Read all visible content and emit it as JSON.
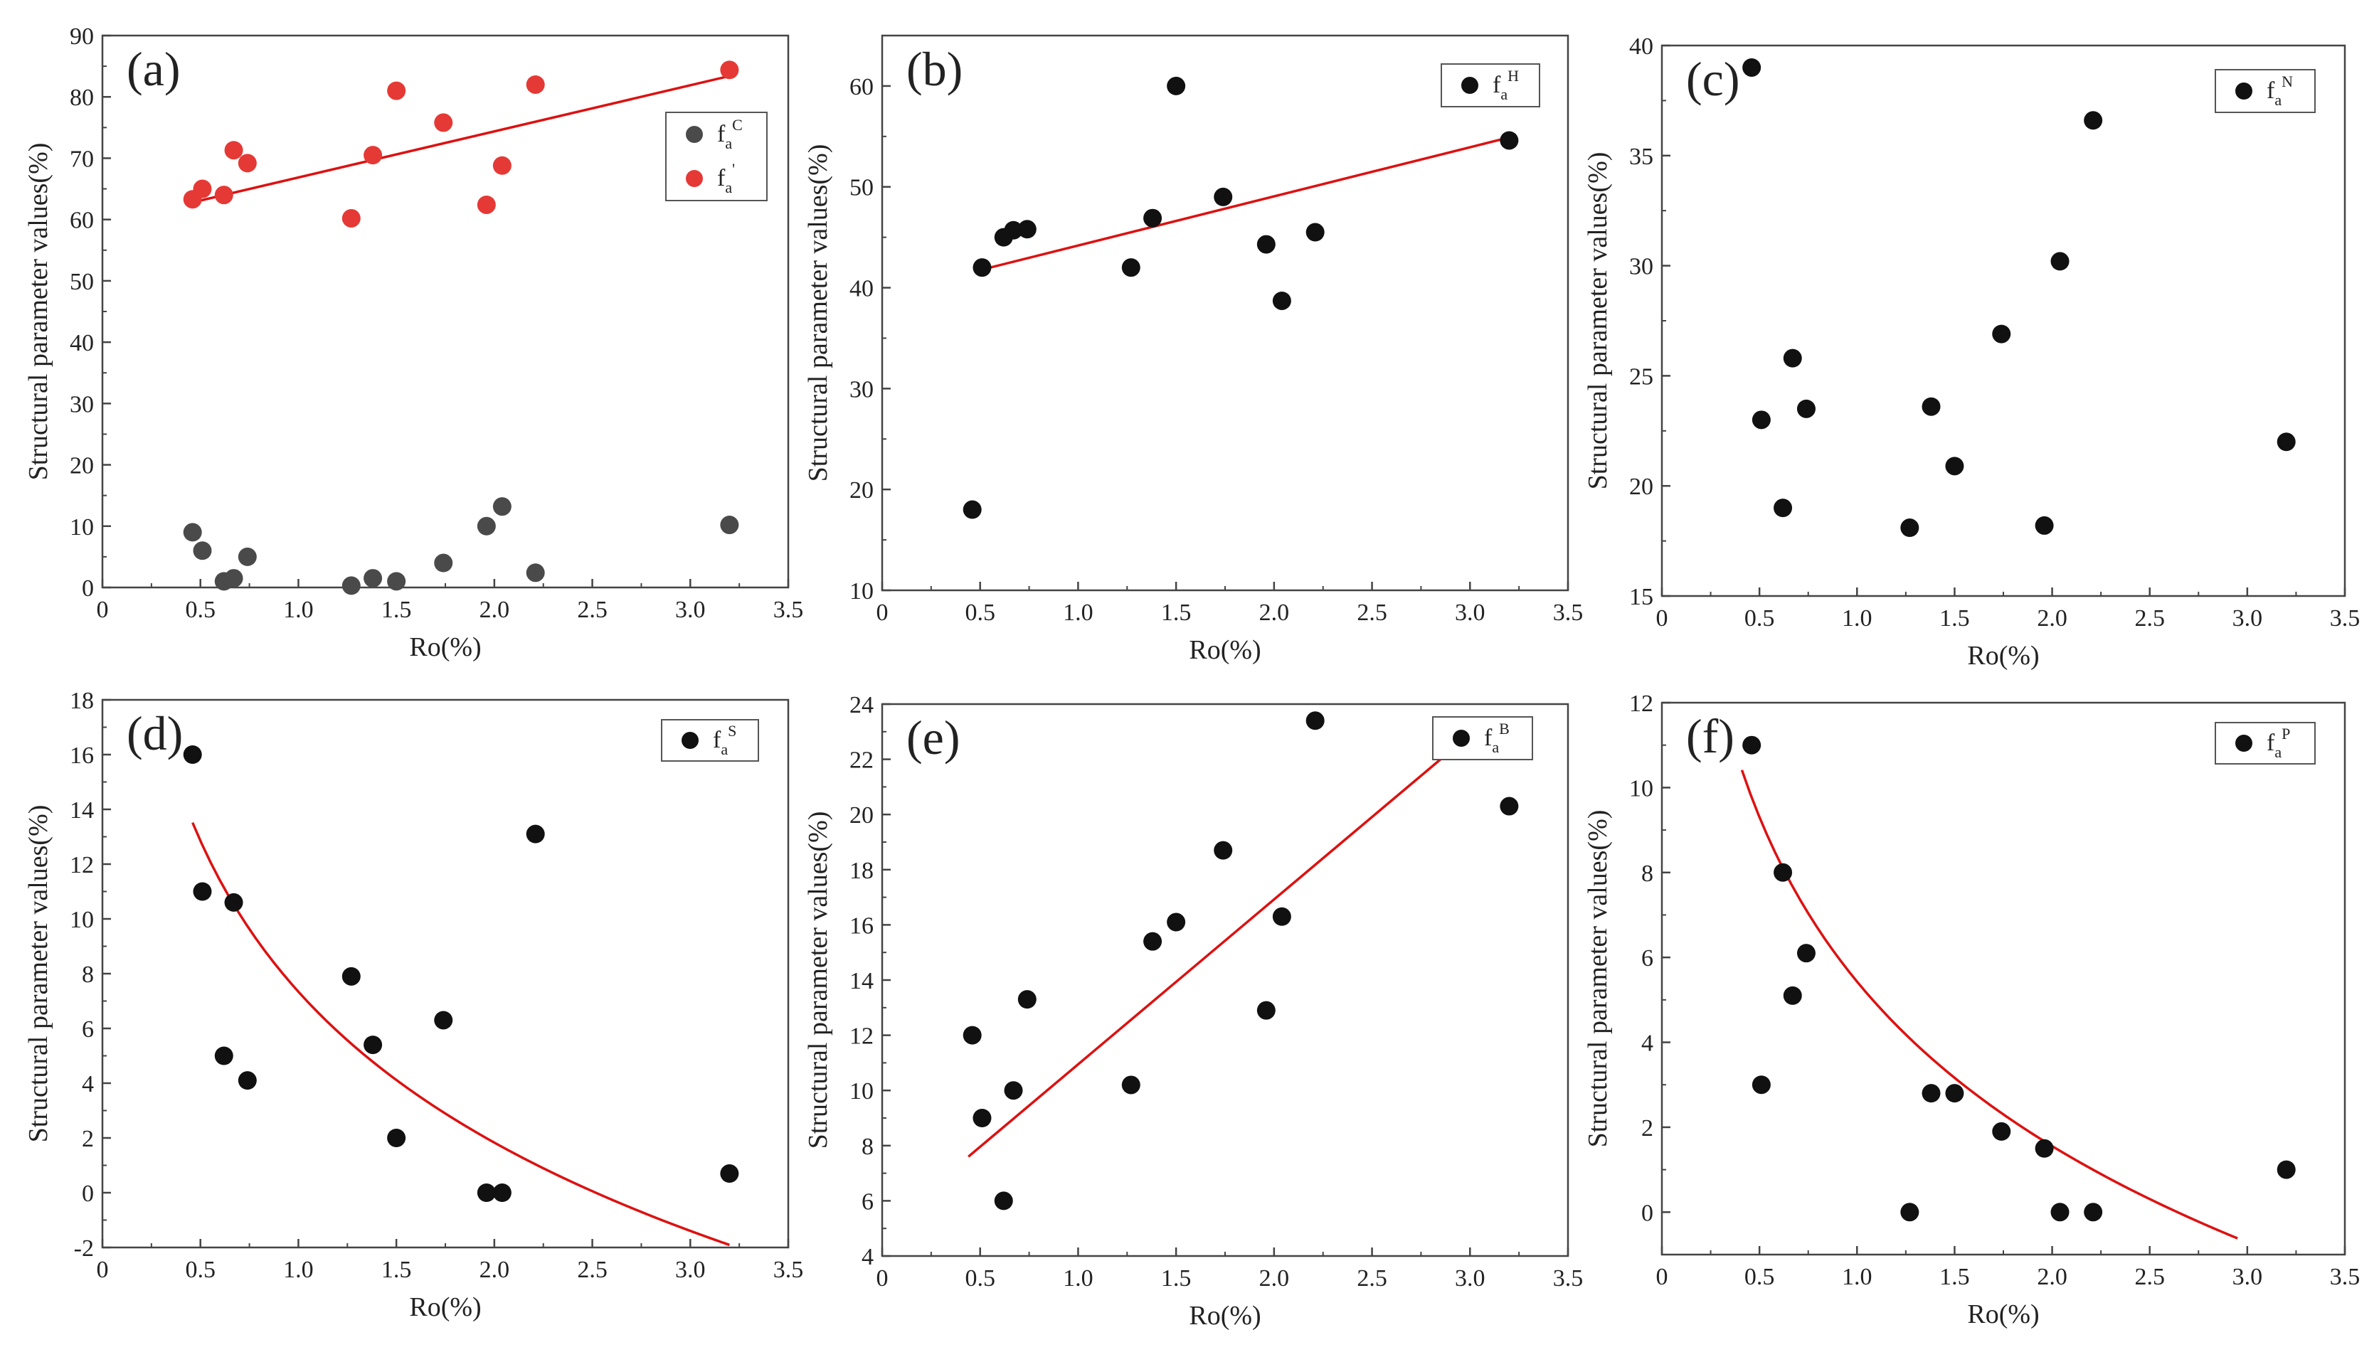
{
  "figure": {
    "colors": {
      "black": "#111111",
      "gray": "#4a4a4a",
      "red": "#e53935",
      "fit": "#dd1111",
      "axis": "#444444"
    }
  },
  "chart_data": [
    {
      "type": "scatter",
      "letter": "(a)",
      "xlabel": "Ro(%)",
      "ylabel": "Structural parameter values(%)",
      "xlim": [
        0,
        3.5
      ],
      "ylim": [
        0,
        90
      ],
      "xticks": [
        "0",
        "0.5",
        "1.0",
        "1.5",
        "2.0",
        "2.5",
        "3.0",
        "3.5"
      ],
      "yticks": [
        "0",
        "10",
        "20",
        "30",
        "40",
        "50",
        "60",
        "70",
        "80",
        "90"
      ],
      "ytick_values": [
        0,
        10,
        20,
        30,
        40,
        50,
        60,
        70,
        80,
        90
      ],
      "legend_position": "top-right",
      "series": [
        {
          "name": "fa C",
          "legend_base": "f",
          "legend_sub": "a",
          "legend_sup": "C",
          "color": "#4a4a4a",
          "x": [
            0.46,
            0.51,
            0.62,
            0.67,
            0.74,
            1.27,
            1.38,
            1.5,
            1.74,
            1.96,
            2.04,
            2.21,
            3.2
          ],
          "y": [
            9.0,
            6.0,
            1.0,
            1.5,
            5.0,
            0.3,
            1.5,
            1.0,
            4.0,
            10.0,
            13.2,
            2.4,
            10.2
          ]
        },
        {
          "name": "fa '",
          "legend_base": "f",
          "legend_sub": "a",
          "legend_sup": "'",
          "color": "#e53935",
          "x": [
            0.46,
            0.51,
            0.62,
            0.67,
            0.74,
            1.27,
            1.38,
            1.5,
            1.74,
            1.96,
            2.04,
            2.21,
            3.2
          ],
          "y": [
            63.3,
            65.0,
            64.0,
            71.3,
            69.2,
            60.2,
            70.5,
            81.0,
            75.8,
            62.4,
            68.8,
            82.0,
            84.4
          ]
        }
      ],
      "fit": {
        "kind": "linear",
        "series": 1,
        "x_range": [
          0.46,
          3.2
        ],
        "y_range": [
          62.8,
          83.4
        ]
      }
    },
    {
      "type": "scatter",
      "letter": "(b)",
      "xlabel": "Ro(%)",
      "ylabel": "Structural parameter values(%)",
      "xlim": [
        0,
        3.5
      ],
      "ylim": [
        10,
        65
      ],
      "xticks": [
        "0",
        "0.5",
        "1.0",
        "1.5",
        "2.0",
        "2.5",
        "3.0",
        "3.5"
      ],
      "yticks": [
        "10",
        "20",
        "30",
        "40",
        "50",
        "60"
      ],
      "ytick_values": [
        10,
        20,
        30,
        40,
        50,
        60
      ],
      "legend_position": "top-right",
      "series": [
        {
          "name": "fa H",
          "legend_base": "f",
          "legend_sub": "a",
          "legend_sup": "H",
          "color": "#111111",
          "x": [
            0.46,
            0.51,
            0.62,
            0.67,
            0.74,
            1.27,
            1.38,
            1.5,
            1.74,
            1.96,
            2.04,
            2.21,
            3.2
          ],
          "y": [
            18.0,
            42.0,
            45.0,
            45.7,
            45.8,
            42.0,
            46.9,
            60.0,
            49.0,
            44.3,
            38.7,
            45.5,
            54.6
          ]
        }
      ],
      "fit": {
        "kind": "linear",
        "series": 0,
        "x_range": [
          0.51,
          3.2
        ],
        "y_range": [
          41.8,
          54.9
        ]
      }
    },
    {
      "type": "scatter",
      "letter": "(c)",
      "xlabel": "Ro(%)",
      "ylabel": "Structural parameter values(%)",
      "xlim": [
        0,
        3.5
      ],
      "ylim": [
        15,
        40
      ],
      "xticks": [
        "0",
        "0.5",
        "1.0",
        "1.5",
        "2.0",
        "2.5",
        "3.0",
        "3.5"
      ],
      "yticks": [
        "15",
        "20",
        "25",
        "30",
        "35",
        "40"
      ],
      "ytick_values": [
        15,
        20,
        25,
        30,
        35,
        40
      ],
      "legend_position": "top-right",
      "series": [
        {
          "name": "fa N",
          "legend_base": "f",
          "legend_sub": "a",
          "legend_sup": "N",
          "color": "#111111",
          "x": [
            0.46,
            0.51,
            0.62,
            0.67,
            0.74,
            1.27,
            1.38,
            1.5,
            1.74,
            1.96,
            2.04,
            2.21,
            3.2
          ],
          "y": [
            39.0,
            23.0,
            19.0,
            25.8,
            23.5,
            18.1,
            23.6,
            20.9,
            26.9,
            18.2,
            30.2,
            36.6,
            22.0
          ]
        }
      ],
      "fit": null
    },
    {
      "type": "scatter",
      "letter": "(d)",
      "xlabel": "Ro(%)",
      "ylabel": "Structural parameter values(%)",
      "xlim": [
        0,
        3.5
      ],
      "ylim": [
        -2,
        18
      ],
      "xticks": [
        "0",
        "0.5",
        "1.0",
        "1.5",
        "2.0",
        "2.5",
        "3.0",
        "3.5"
      ],
      "yticks": [
        "-2",
        "0",
        "2",
        "4",
        "6",
        "8",
        "10",
        "12",
        "14",
        "16",
        "18"
      ],
      "ytick_values": [
        -2,
        0,
        2,
        4,
        6,
        8,
        10,
        12,
        14,
        16,
        18
      ],
      "legend_position": "top-right",
      "series": [
        {
          "name": "fa S",
          "legend_base": "f",
          "legend_sub": "a",
          "legend_sup": "S",
          "color": "#111111",
          "x": [
            0.46,
            0.51,
            0.62,
            0.67,
            0.74,
            1.27,
            1.38,
            1.5,
            1.74,
            1.96,
            2.04,
            2.21,
            3.2
          ],
          "y": [
            16.0,
            11.0,
            5.0,
            10.6,
            4.1,
            7.9,
            5.4,
            2.0,
            6.3,
            0.0,
            0.0,
            13.1,
            0.7
          ]
        }
      ],
      "fit": {
        "kind": "log",
        "series": 0,
        "x_range": [
          0.46,
          3.2
        ],
        "a": 7.34,
        "b": -7.95
      }
    },
    {
      "type": "scatter",
      "letter": "(e)",
      "xlabel": "Ro(%)",
      "ylabel": "Structural parameter values(%)",
      "xlim": [
        0,
        3.5
      ],
      "ylim": [
        4,
        24
      ],
      "xticks": [
        "0",
        "0.5",
        "1.0",
        "1.5",
        "2.0",
        "2.5",
        "3.0",
        "3.5"
      ],
      "yticks": [
        "4",
        "6",
        "8",
        "10",
        "12",
        "14",
        "16",
        "18",
        "20",
        "22",
        "24"
      ],
      "ytick_values": [
        4,
        6,
        8,
        10,
        12,
        14,
        16,
        18,
        20,
        22,
        24
      ],
      "legend_position": "top-right",
      "series": [
        {
          "name": "fa B",
          "legend_base": "f",
          "legend_sub": "a",
          "legend_sup": "B",
          "color": "#111111",
          "x": [
            0.46,
            0.51,
            0.62,
            0.67,
            0.74,
            1.27,
            1.38,
            1.5,
            1.74,
            1.96,
            2.04,
            2.21,
            3.2
          ],
          "y": [
            12.0,
            9.0,
            6.0,
            10.0,
            13.3,
            10.2,
            15.4,
            16.1,
            18.7,
            12.9,
            16.3,
            23.4,
            20.3
          ]
        }
      ],
      "fit": {
        "kind": "linear",
        "series": 0,
        "x_range": [
          0.44,
          2.9
        ],
        "y_range": [
          7.6,
          22.3
        ]
      }
    },
    {
      "type": "scatter",
      "letter": "(f)",
      "xlabel": "Ro(%)",
      "ylabel": "Structural parameter values(%)",
      "xlim": [
        0,
        3.5
      ],
      "ylim": [
        -1,
        12
      ],
      "xticks": [
        "0",
        "0.5",
        "1.0",
        "1.5",
        "2.0",
        "2.5",
        "3.0",
        "3.5"
      ],
      "yticks": [
        "0",
        "2",
        "4",
        "6",
        "8",
        "10",
        "12"
      ],
      "ytick_values": [
        0,
        2,
        4,
        6,
        8,
        10,
        12
      ],
      "legend_position": "top-right",
      "series": [
        {
          "name": "fa P",
          "legend_base": "f",
          "legend_sub": "a",
          "legend_sup": "P",
          "color": "#111111",
          "x": [
            0.46,
            0.51,
            0.62,
            0.67,
            0.74,
            1.27,
            1.38,
            1.5,
            1.74,
            1.96,
            2.04,
            2.21,
            3.2
          ],
          "y": [
            11.0,
            3.0,
            8.0,
            5.1,
            6.1,
            0.0,
            2.8,
            2.8,
            1.9,
            1.5,
            0.0,
            0.0,
            1.0
          ]
        }
      ],
      "fit": {
        "kind": "log",
        "series": 0,
        "x_range": [
          0.41,
          2.95
        ],
        "a": 5.43,
        "b": -5.59
      }
    }
  ]
}
